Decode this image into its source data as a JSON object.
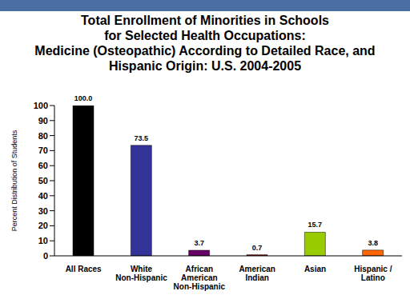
{
  "chart_data": {
    "type": "bar",
    "title": "Total Enrollment of Minorities in Schools\nfor Selected Health Occupations:\nMedicine (Osteopathic) According to Detailed Race, and\nHispanic Origin: U.S. 2004-2005",
    "y_label": "Percent Distribution of Students",
    "categories": [
      "All Races",
      "White Non-Hispanic",
      "African American Non-Hispanic",
      "American Indian",
      "Asian",
      "Hispanic / Latino"
    ],
    "values": [
      100.0,
      73.5,
      3.7,
      0.7,
      15.7,
      3.8
    ],
    "value_labels": [
      "100.0",
      "73.5",
      "3.7",
      "0.7",
      "15.7",
      "3.8"
    ],
    "colors": [
      "#000000",
      "#333399",
      "#660066",
      "#990000",
      "#99cc00",
      "#ff6600"
    ],
    "ylim": [
      0,
      100
    ],
    "yticks": [
      0,
      10,
      20,
      30,
      40,
      50,
      60,
      70,
      80,
      90,
      100
    ],
    "grid": false,
    "data_labels": true
  }
}
